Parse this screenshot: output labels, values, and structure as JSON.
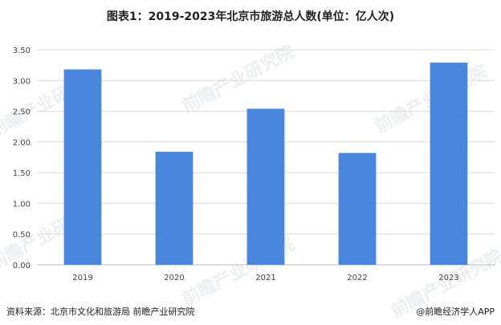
{
  "title": "图表1：2019-2023年北京市旅游总人数(单位：亿人次)",
  "source": "资料来源：北京市文化和旅游局 前瞻产业研究院",
  "credit": "@前瞻经济学人APP",
  "watermark": "前瞻产业研究院",
  "colors": {
    "bar": "#4a86e0",
    "grid": "#d9d9d9",
    "axis": "#bfbfbf",
    "tick": "#444444"
  },
  "chart_data": {
    "type": "bar",
    "categories": [
      "2019",
      "2020",
      "2021",
      "2022",
      "2023"
    ],
    "values": [
      3.18,
      1.84,
      2.54,
      1.82,
      3.29
    ],
    "ylim": [
      0,
      3.5
    ],
    "yticks": [
      "0.00",
      "0.50",
      "1.00",
      "1.50",
      "2.00",
      "2.50",
      "3.00",
      "3.50"
    ],
    "grid": true,
    "legend": "none"
  }
}
